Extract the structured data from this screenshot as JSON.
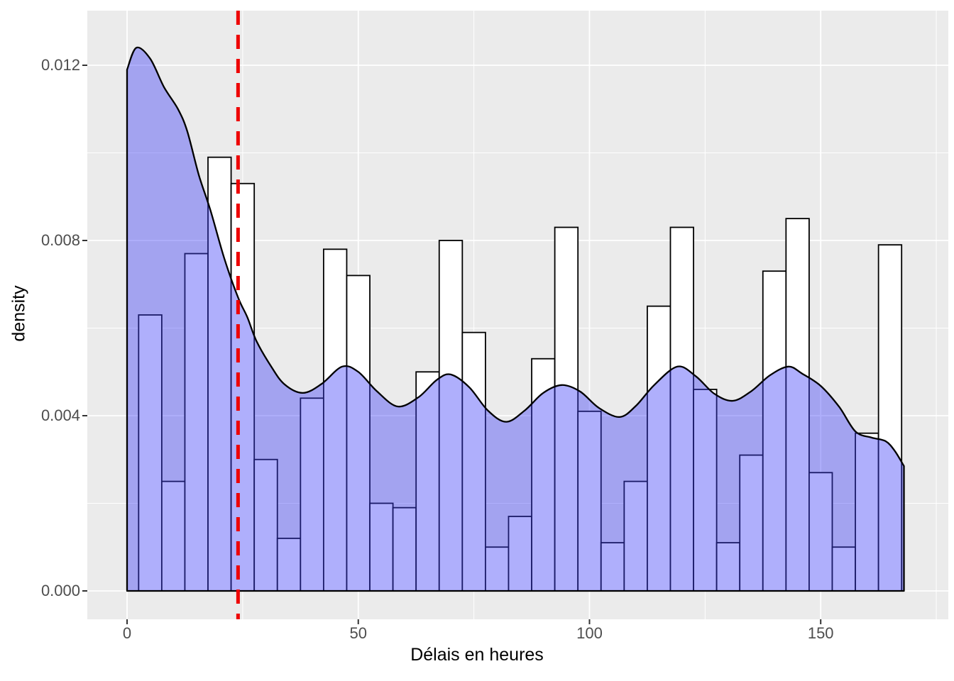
{
  "axes": {
    "x": {
      "title": "Délais en heures",
      "range": [
        -8.6,
        177.6
      ],
      "ticks": [
        0,
        50,
        100,
        150
      ],
      "tick_labels": [
        "0",
        "50",
        "100",
        "150"
      ],
      "minor_ticks": [
        25,
        75,
        125,
        175
      ]
    },
    "y": {
      "title": "density",
      "range": [
        -0.000648,
        0.013247
      ],
      "ticks": [
        0,
        0.004,
        0.008,
        0.012
      ],
      "tick_labels": [
        "0.000",
        "0.004",
        "0.008",
        "0.012"
      ],
      "minor_ticks": [
        0.002,
        0.006,
        0.01
      ]
    }
  },
  "chart_data": {
    "type": "bar",
    "subtype": "histogram-with-density-overlay",
    "title": "",
    "xlabel": "Délais en heures",
    "ylabel": "density",
    "xlim": [
      -8.6,
      177.6
    ],
    "ylim": [
      -0.000648,
      0.013247
    ],
    "grid": "on",
    "legend": "none",
    "histogram": {
      "bin_width": 5,
      "bin_start": 2.5,
      "bin_centers": [
        5,
        10,
        15,
        20,
        25,
        30,
        35,
        40,
        45,
        50,
        55,
        60,
        65,
        70,
        75,
        80,
        85,
        90,
        95,
        100,
        105,
        110,
        115,
        120,
        125,
        130,
        135,
        140,
        145,
        150,
        155,
        160,
        165
      ],
      "densities": [
        0.0063,
        0.0025,
        0.0077,
        0.0099,
        0.0093,
        0.003,
        0.0012,
        0.0044,
        0.0078,
        0.0072,
        0.002,
        0.0019,
        0.005,
        0.008,
        0.0059,
        0.001,
        0.0017,
        0.0053,
        0.0083,
        0.0041,
        0.0011,
        0.0025,
        0.0065,
        0.0083,
        0.0046,
        0.0011,
        0.0031,
        0.0073,
        0.0085,
        0.0027,
        0.001,
        0.0036,
        0.0079
      ]
    },
    "density_curve": {
      "points": [
        [
          0,
          0.0119
        ],
        [
          2,
          0.0124
        ],
        [
          5,
          0.01215
        ],
        [
          8,
          0.0115
        ],
        [
          11,
          0.011
        ],
        [
          13,
          0.0105
        ],
        [
          15.5,
          0.0095
        ],
        [
          18,
          0.0087
        ],
        [
          21,
          0.0076
        ],
        [
          24,
          0.0067
        ],
        [
          26,
          0.00625
        ],
        [
          28,
          0.0057
        ],
        [
          31,
          0.00515
        ],
        [
          34,
          0.00472
        ],
        [
          38,
          0.00452
        ],
        [
          42,
          0.00472
        ],
        [
          46.5,
          0.00512
        ],
        [
          50,
          0.005
        ],
        [
          54,
          0.00456
        ],
        [
          58.5,
          0.00421
        ],
        [
          63,
          0.00442
        ],
        [
          67,
          0.00482
        ],
        [
          70,
          0.00494
        ],
        [
          74,
          0.00465
        ],
        [
          78,
          0.00412
        ],
        [
          82,
          0.00386
        ],
        [
          86,
          0.00412
        ],
        [
          90,
          0.00452
        ],
        [
          94,
          0.0047
        ],
        [
          98,
          0.00455
        ],
        [
          102,
          0.00418
        ],
        [
          106.5,
          0.00397
        ],
        [
          110,
          0.00422
        ],
        [
          114,
          0.0047
        ],
        [
          119,
          0.00512
        ],
        [
          123,
          0.0049
        ],
        [
          127,
          0.0045
        ],
        [
          131,
          0.00434
        ],
        [
          135,
          0.00456
        ],
        [
          139,
          0.00492
        ],
        [
          143,
          0.00512
        ],
        [
          146,
          0.00496
        ],
        [
          150,
          0.00468
        ],
        [
          154,
          0.0042
        ],
        [
          157.5,
          0.00364
        ],
        [
          161,
          0.0035
        ],
        [
          164,
          0.00342
        ],
        [
          166,
          0.0032
        ],
        [
          168,
          0.00285
        ]
      ]
    },
    "vline": {
      "x": 24,
      "style": "dashed",
      "color": "#EE0000"
    },
    "colors": {
      "panel_bg": "#EBEBEB",
      "gridline": "#FFFFFF",
      "bar_fill": "#FFFFFF",
      "bar_stroke": "#000000",
      "density_fill": "rgba(64,64,248,0.42)",
      "density_stroke": "#000000",
      "vline": "#EE0000",
      "tick_label": "#4D4D4D",
      "axis_title": "#000000",
      "tick_mark": "#333333"
    }
  }
}
